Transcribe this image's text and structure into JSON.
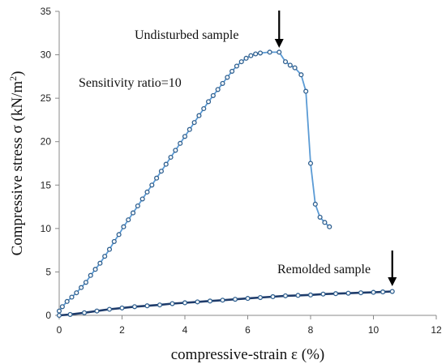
{
  "chart_data": {
    "type": "scatter",
    "title": "",
    "xlabel": "compressive-strain ε (%)",
    "ylabel": "Compressive stress σ (kN/m",
    "ylabel_sup": "2",
    "ylabel_close": ")",
    "xlim": [
      0,
      12
    ],
    "ylim": [
      0,
      35
    ],
    "xticks": [
      0,
      2,
      4,
      6,
      8,
      10,
      12
    ],
    "yticks": [
      0,
      5,
      10,
      15,
      20,
      25,
      30,
      35
    ],
    "grid": false,
    "annotations": [
      {
        "id": "undisturbed",
        "text": "Undisturbed sample",
        "arrow_x": 7.0
      },
      {
        "id": "sensitivity",
        "text": "Sensitivity ratio=10"
      },
      {
        "id": "remolded",
        "text": "Remolded sample",
        "arrow_x": 10.6
      }
    ],
    "series": [
      {
        "id": "undisturbed",
        "line_color": "#5b9bd5",
        "marker_color": "#2e5f8f",
        "points": [
          [
            0.0,
            0.5
          ],
          [
            0.1,
            1.0
          ],
          [
            0.25,
            1.6
          ],
          [
            0.4,
            2.1
          ],
          [
            0.55,
            2.6
          ],
          [
            0.7,
            3.2
          ],
          [
            0.85,
            3.8
          ],
          [
            1.0,
            4.6
          ],
          [
            1.15,
            5.3
          ],
          [
            1.3,
            6.0
          ],
          [
            1.45,
            6.8
          ],
          [
            1.6,
            7.6
          ],
          [
            1.75,
            8.5
          ],
          [
            1.9,
            9.3
          ],
          [
            2.05,
            10.2
          ],
          [
            2.2,
            11.0
          ],
          [
            2.35,
            11.8
          ],
          [
            2.5,
            12.6
          ],
          [
            2.65,
            13.4
          ],
          [
            2.8,
            14.2
          ],
          [
            2.95,
            15.0
          ],
          [
            3.1,
            15.8
          ],
          [
            3.25,
            16.6
          ],
          [
            3.4,
            17.4
          ],
          [
            3.55,
            18.2
          ],
          [
            3.7,
            19.0
          ],
          [
            3.85,
            19.8
          ],
          [
            4.0,
            20.6
          ],
          [
            4.15,
            21.4
          ],
          [
            4.3,
            22.2
          ],
          [
            4.45,
            23.0
          ],
          [
            4.6,
            23.8
          ],
          [
            4.75,
            24.6
          ],
          [
            4.9,
            25.3
          ],
          [
            5.05,
            26.0
          ],
          [
            5.2,
            26.7
          ],
          [
            5.35,
            27.4
          ],
          [
            5.5,
            28.1
          ],
          [
            5.65,
            28.7
          ],
          [
            5.8,
            29.2
          ],
          [
            5.95,
            29.6
          ],
          [
            6.1,
            29.9
          ],
          [
            6.25,
            30.1
          ],
          [
            6.4,
            30.2
          ],
          [
            6.7,
            30.3
          ],
          [
            7.0,
            30.3
          ],
          [
            7.2,
            29.2
          ],
          [
            7.35,
            28.8
          ],
          [
            7.5,
            28.5
          ],
          [
            7.7,
            27.7
          ],
          [
            7.85,
            25.8
          ],
          [
            8.0,
            17.5
          ],
          [
            8.15,
            12.8
          ],
          [
            8.3,
            11.3
          ],
          [
            8.45,
            10.7
          ],
          [
            8.6,
            10.2
          ]
        ]
      },
      {
        "id": "remolded",
        "line_color": "#1f3c6b",
        "marker_color": "#2e5f8f",
        "points": [
          [
            0.0,
            0.0
          ],
          [
            0.35,
            0.1
          ],
          [
            0.8,
            0.3
          ],
          [
            1.2,
            0.5
          ],
          [
            1.6,
            0.7
          ],
          [
            2.0,
            0.85
          ],
          [
            2.4,
            1.0
          ],
          [
            2.8,
            1.1
          ],
          [
            3.2,
            1.2
          ],
          [
            3.6,
            1.35
          ],
          [
            4.0,
            1.45
          ],
          [
            4.4,
            1.55
          ],
          [
            4.8,
            1.65
          ],
          [
            5.2,
            1.75
          ],
          [
            5.6,
            1.85
          ],
          [
            6.0,
            1.95
          ],
          [
            6.4,
            2.05
          ],
          [
            6.8,
            2.15
          ],
          [
            7.2,
            2.25
          ],
          [
            7.6,
            2.3
          ],
          [
            8.0,
            2.35
          ],
          [
            8.4,
            2.45
          ],
          [
            8.8,
            2.5
          ],
          [
            9.2,
            2.55
          ],
          [
            9.6,
            2.6
          ],
          [
            10.0,
            2.65
          ],
          [
            10.3,
            2.7
          ],
          [
            10.6,
            2.75
          ]
        ]
      }
    ]
  }
}
